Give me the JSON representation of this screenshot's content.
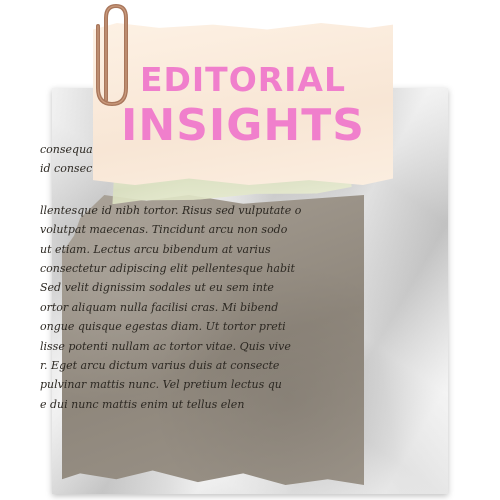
{
  "title": {
    "line1": "EDITORIAL",
    "line2": "INSIGHTS"
  },
  "article_lines_top": [
    "",
    "",
    "",
    "",
    "consequat semper viverra na",
    "id consectetur purus ut faucibus pulvi"
  ],
  "article_lines": [
    "llentesque id nibh tortor. Risus sed vulputate o",
    "volutpat maecenas. Tincidunt arcu non sodo",
    "ut etiam. Lectus arcu bibendum at varius",
    "consectetur adipiscing elit pellentesque habit",
    "Sed velit dignissim sodales ut eu sem inte",
    "ortor aliquam nulla facilisi cras. Mi bibend",
    "ongue quisque egestas diam. Ut tortor preti",
    "lisse potenti nullam ac tortor vitae. Quis vive",
    "r. Eget arcu dictum varius duis at consecte",
    "pulvinar mattis nunc. Vel pretium lectus qu",
    "e dui nunc mattis enim ut tellus elen"
  ],
  "colors": {
    "title_pink": "#f07fcc",
    "card_bg": "#fdf1e4",
    "note_bg": "#a79f94",
    "paper_bg": "#dcdcdc"
  },
  "icons": {
    "paperclip": "paperclip-icon"
  }
}
